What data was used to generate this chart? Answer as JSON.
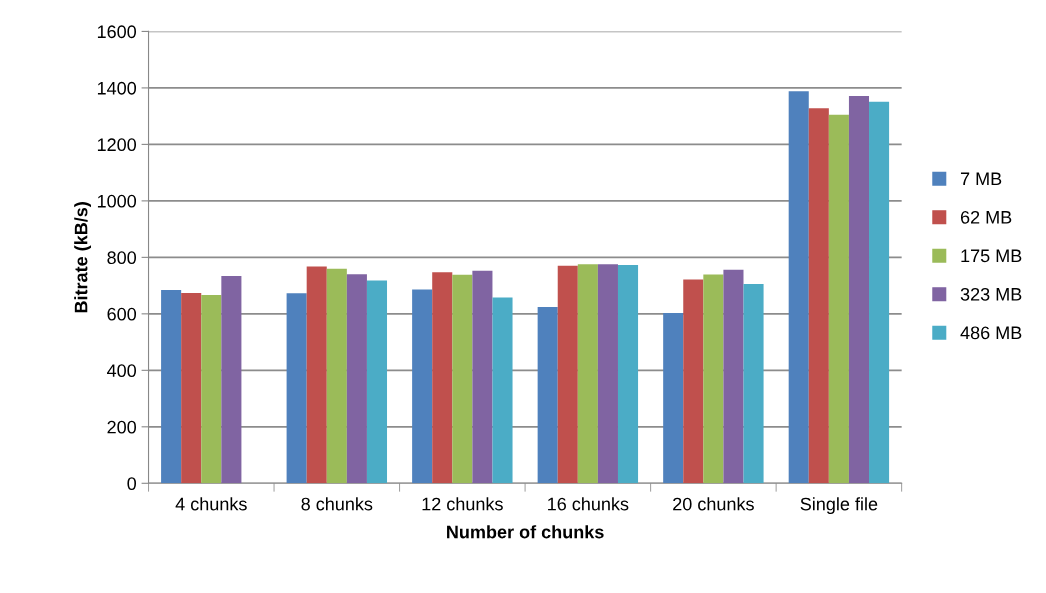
{
  "chart_data": {
    "type": "bar",
    "xlabel": "Number of chunks",
    "ylabel": "Bitrate (kB/s)",
    "categories": [
      "4 chunks",
      "8 chunks",
      "12 chunks",
      "16 chunks",
      "20 chunks",
      "Single file"
    ],
    "series": [
      {
        "name": "7 MB",
        "color": "#4f81bd",
        "values": [
          684,
          673,
          686,
          624,
          603,
          1388
        ]
      },
      {
        "name": "62 MB",
        "color": "#c0504d",
        "values": [
          674,
          768,
          747,
          770,
          722,
          1328
        ]
      },
      {
        "name": "175 MB",
        "color": "#9bbb59",
        "values": [
          667,
          760,
          738,
          776,
          739,
          1305
        ]
      },
      {
        "name": "323 MB",
        "color": "#8064a2",
        "values": [
          734,
          740,
          753,
          776,
          756,
          1371
        ]
      },
      {
        "name": "486 MB",
        "color": "#4bacc6",
        "values": [
          null,
          718,
          658,
          773,
          706,
          1351
        ]
      }
    ],
    "ylim": [
      0,
      1600
    ],
    "yticks": [
      0,
      200,
      400,
      600,
      800,
      1000,
      1200,
      1400,
      1600
    ],
    "grid": "y",
    "legend": "right"
  }
}
